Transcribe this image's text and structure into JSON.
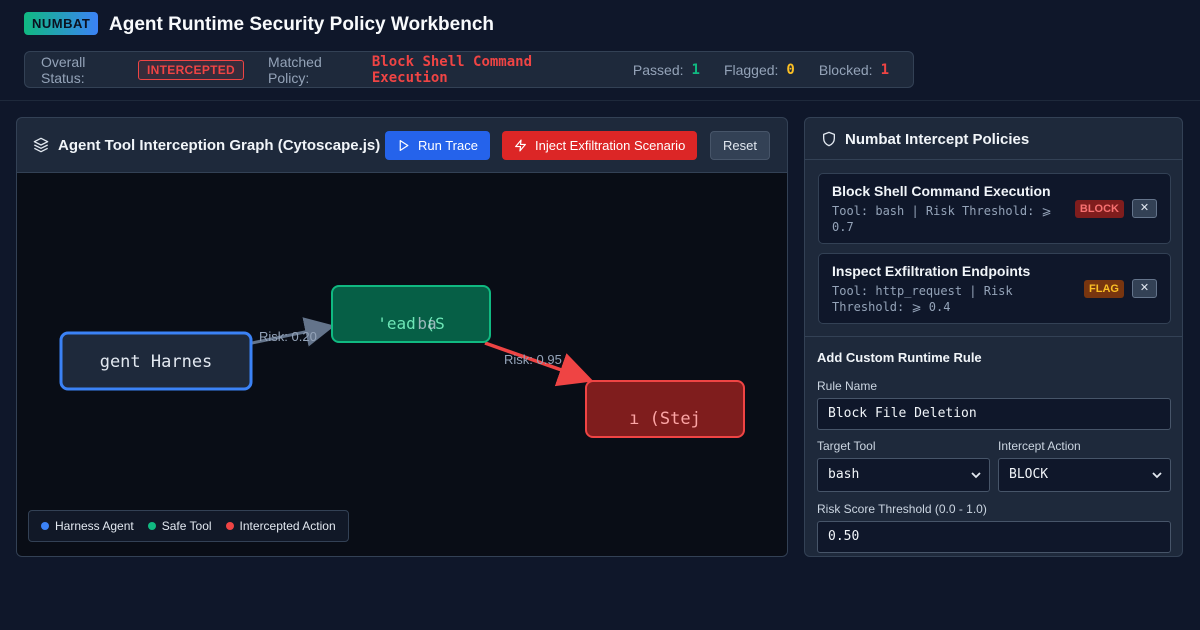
{
  "header": {
    "brand": "NUMBAT",
    "title": "Agent Runtime Security Policy Workbench"
  },
  "status": {
    "overall_label": "Overall Status:",
    "overall_value": "INTERCEPTED",
    "matched_label": "Matched Policy:",
    "matched_value": "Block Shell Command Execution",
    "passed_label": "Passed:",
    "passed_value": "1",
    "flagged_label": "Flagged:",
    "flagged_value": "0",
    "blocked_label": "Blocked:",
    "blocked_value": "1"
  },
  "graph": {
    "title": "Agent Tool Interception Graph (Cytoscape.js)",
    "run_label": "Run Trace",
    "inject_label": "Inject Exfiltration Scenario",
    "reset_label": "Reset",
    "nodes": {
      "agent": "gent Harnes",
      "read": "'ead (S",
      "read_overlap": "ba",
      "step": "ı (Stej"
    },
    "edges": {
      "e1": "Risk: 0.20",
      "e2": "Risk: 0.95"
    },
    "legend": {
      "agent": "Harness Agent",
      "safe": "Safe Tool",
      "intercepted": "Intercepted Action"
    }
  },
  "colors": {
    "agent": "#3b82f6",
    "safe": "#10b981",
    "intercepted": "#ef4444",
    "flag": "#fbbf24"
  },
  "policies": {
    "title": "Numbat Intercept Policies",
    "items": [
      {
        "name": "Block Shell Command Execution",
        "desc": "Tool: bash | Risk Threshold: ⩾ 0.7",
        "badge": "BLOCK",
        "remove": "✕"
      },
      {
        "name": "Inspect Exfiltration Endpoints",
        "desc": "Tool: http_request | Risk Threshold: ⩾ 0.4",
        "badge": "FLAG",
        "remove": "✕"
      }
    ]
  },
  "form": {
    "title": "Add Custom Runtime Rule",
    "rule_name_label": "Rule Name",
    "rule_name_value": "Block File Deletion",
    "tool_label": "Target Tool",
    "tool_value": "bash",
    "action_label": "Intercept Action",
    "action_value": "BLOCK",
    "threshold_label": "Risk Score Threshold (0.0 - 1.0)",
    "threshold_value": "0.50"
  }
}
